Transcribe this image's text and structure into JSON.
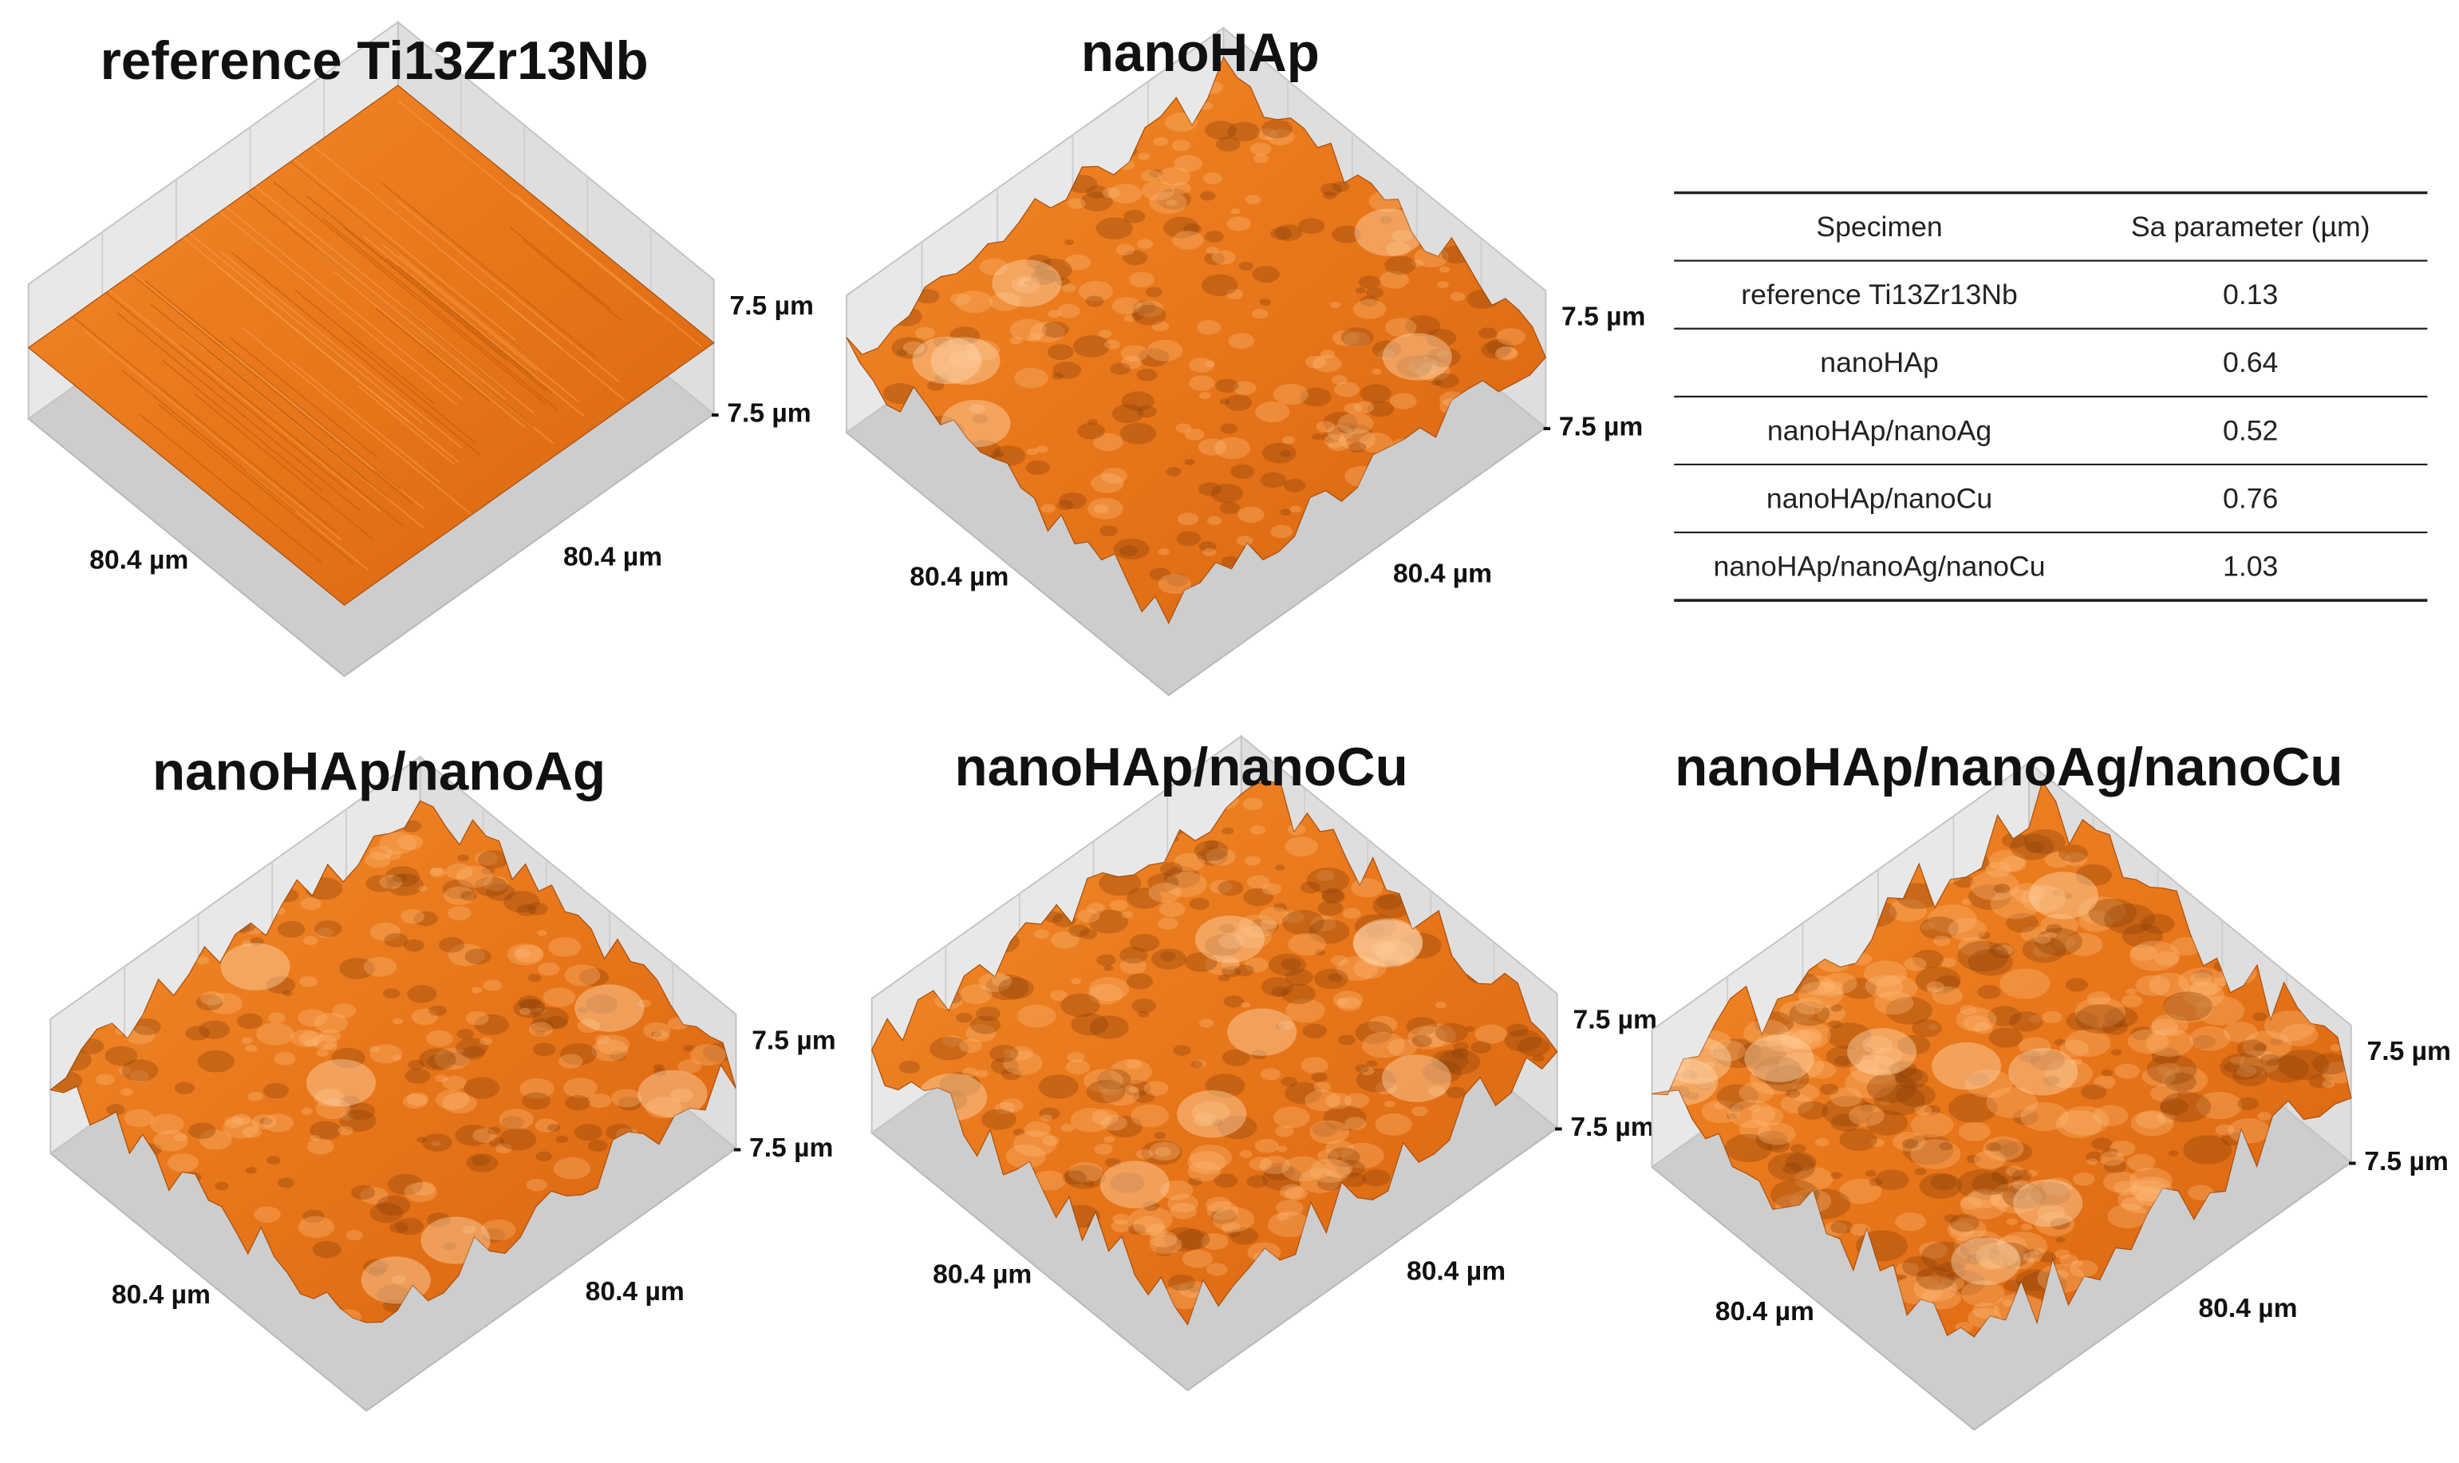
{
  "panels": [
    {
      "title": "reference Ti13Zr13Nb",
      "z_max_label": "7.5 µm",
      "z_min_label": "- 7.5 µm",
      "x_label": "80.4 µm",
      "y_label": "80.4 µm"
    },
    {
      "title": "nanoHAp",
      "z_max_label": "7.5 µm",
      "z_min_label": "- 7.5 µm",
      "x_label": "80.4 µm",
      "y_label": "80.4 µm"
    },
    {
      "title": "nanoHAp/nanoAg",
      "z_max_label": "7.5 µm",
      "z_min_label": "- 7.5 µm",
      "x_label": "80.4 µm",
      "y_label": "80.4 µm"
    },
    {
      "title": "nanoHAp/nanoCu",
      "z_max_label": "7.5 µm",
      "z_min_label": "- 7.5 µm",
      "x_label": "80.4 µm",
      "y_label": "80.4 µm"
    },
    {
      "title": "nanoHAp/nanoAg/nanoCu",
      "z_max_label": "7.5 µm",
      "z_min_label": "- 7.5 µm",
      "x_label": "80.4 µm",
      "y_label": "80.4 µm"
    }
  ],
  "table": {
    "header": [
      "Specimen",
      "Sa parameter (µm)"
    ],
    "rows": [
      [
        "reference Ti13Zr13Nb",
        "0.13"
      ],
      [
        "nanoHAp",
        "0.64"
      ],
      [
        "nanoHAp/nanoAg",
        "0.52"
      ],
      [
        "nanoHAp/nanoCu",
        "0.76"
      ],
      [
        "nanoHAp/nanoAg/nanoCu",
        "1.03"
      ]
    ]
  }
}
